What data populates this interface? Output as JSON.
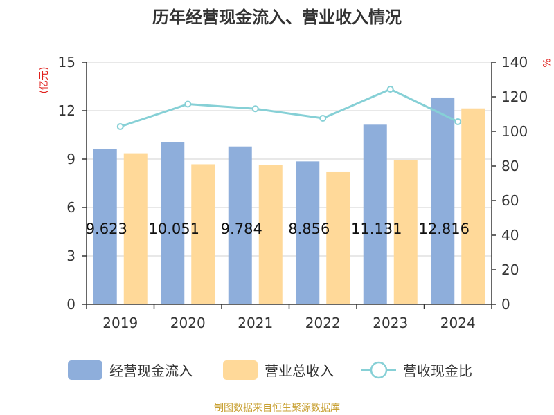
{
  "chart_data": {
    "type": "bar",
    "title": "历年经营现金流入、营业收入情况",
    "categories": [
      "2019",
      "2020",
      "2021",
      "2022",
      "2023",
      "2024"
    ],
    "series": [
      {
        "name": "经营现金流入",
        "kind": "bar",
        "axis": "left",
        "color": "#8eaedb",
        "values": [
          9.623,
          10.051,
          9.784,
          8.856,
          11.131,
          12.816
        ]
      },
      {
        "name": "营业总收入",
        "kind": "bar",
        "axis": "left",
        "color": "#ffd999",
        "values": [
          9.36,
          8.68,
          8.65,
          8.23,
          8.95,
          12.14
        ]
      },
      {
        "name": "营收现金比",
        "kind": "line",
        "axis": "right",
        "color": "#86d0d6",
        "values": [
          102.8,
          115.8,
          113.1,
          107.6,
          124.4,
          105.6
        ]
      }
    ],
    "data_labels": [
      "9.623",
      "10.051",
      "9.784",
      "8.856",
      "11.131",
      "12.816"
    ],
    "y_left": {
      "label": "(亿元)",
      "ylim": [
        0,
        15
      ],
      "ticks": [
        "0",
        "3",
        "6",
        "9",
        "12",
        "15"
      ]
    },
    "y_right": {
      "label": "%",
      "ylim": [
        0,
        140
      ],
      "ticks": [
        "0",
        "20",
        "40",
        "60",
        "80",
        "100",
        "120",
        "140"
      ]
    },
    "grid": true,
    "legend_position": "bottom",
    "source": "制图数据来自恒生聚源数据库"
  }
}
